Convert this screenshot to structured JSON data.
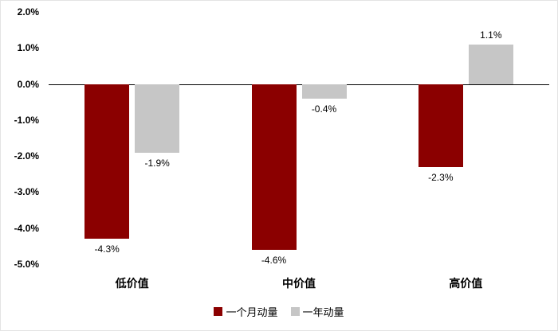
{
  "chart_data": {
    "type": "bar",
    "title": "",
    "xlabel": "",
    "ylabel": "",
    "categories": [
      "低价值",
      "中价值",
      "高价值"
    ],
    "series": [
      {
        "name": "一个月动量",
        "color": "#8B0000",
        "values": [
          -4.3,
          -4.6,
          -2.3
        ],
        "labels": [
          "-4.3%",
          "-4.6%",
          "-2.3%"
        ]
      },
      {
        "name": "一年动量",
        "color": "#C6C6C6",
        "values": [
          -1.9,
          -0.4,
          1.1
        ],
        "labels": [
          "-1.9%",
          "-0.4%",
          "1.1%"
        ]
      }
    ],
    "ylim": [
      -5.0,
      2.0
    ],
    "yticks": [
      {
        "label": "2.0%",
        "value": 2.0
      },
      {
        "label": "1.0%",
        "value": 1.0
      },
      {
        "label": "0.0%",
        "value": 0.0
      },
      {
        "label": "-1.0%",
        "value": -1.0
      },
      {
        "label": "-2.0%",
        "value": -2.0
      },
      {
        "label": "-3.0%",
        "value": -3.0
      },
      {
        "label": "-4.0%",
        "value": -4.0
      },
      {
        "label": "-5.0%",
        "value": -5.0
      }
    ],
    "grid": false,
    "legend_position": "bottom"
  }
}
